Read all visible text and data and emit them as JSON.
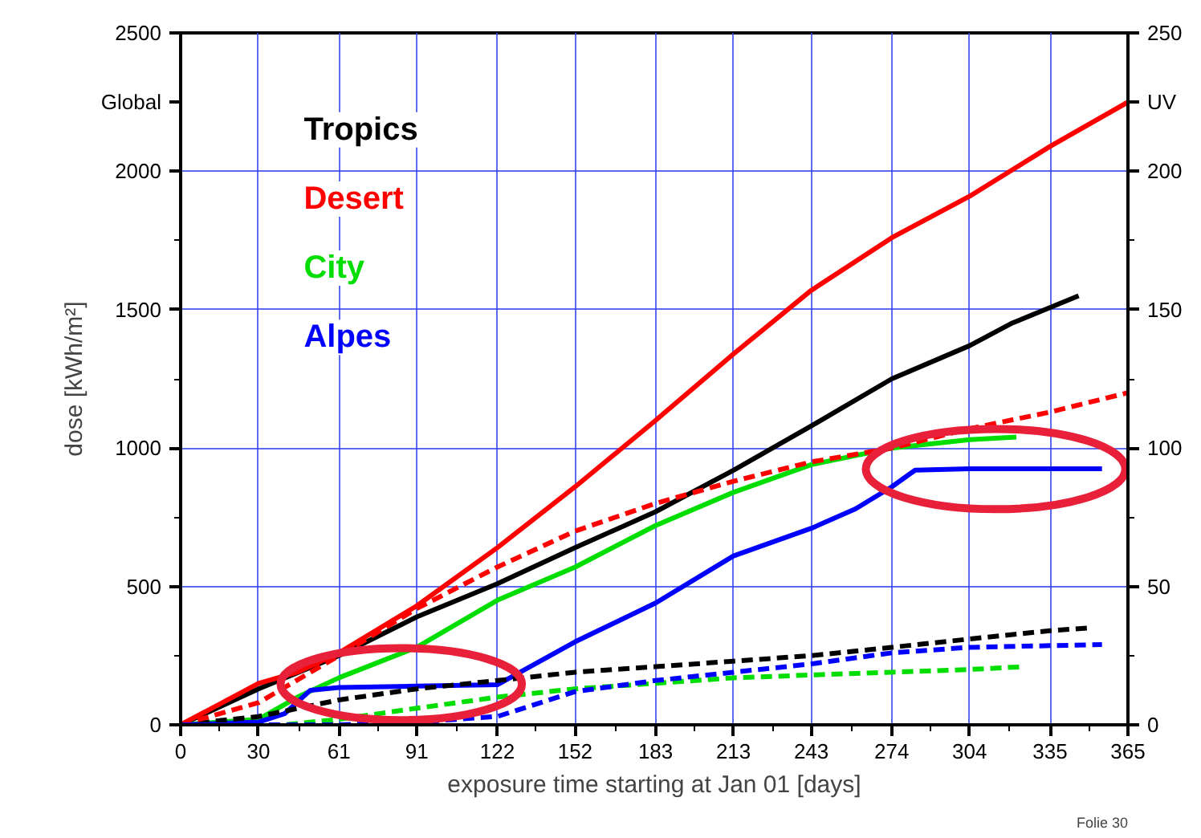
{
  "chart_data": {
    "type": "line",
    "xlabel": "exposure time starting at Jan 01 [days]",
    "ylabel": "dose [kWh/m²]",
    "annotations": [
      "Global",
      "UV",
      "Folie 30"
    ],
    "xlim": [
      0,
      365
    ],
    "xticks": [
      0,
      30,
      61,
      91,
      122,
      152,
      183,
      213,
      243,
      274,
      304,
      335,
      365
    ],
    "ylim": [
      0,
      2500
    ],
    "yticks": [
      0,
      500,
      1000,
      1500,
      2000,
      2500
    ],
    "y2lim": [
      0,
      250
    ],
    "y2ticks": [
      0,
      50,
      100,
      150,
      200,
      250
    ],
    "grid": true,
    "legend": "top left",
    "marker": "none",
    "series": [
      {
        "name": "Tropics",
        "color": "#000000",
        "line_style": "solid",
        "x": [
          0,
          30,
          61,
          91,
          122,
          152,
          183,
          213,
          243,
          274,
          304,
          320,
          346
        ],
        "values": [
          0,
          130,
          250,
          390,
          510,
          640,
          770,
          920,
          1080,
          1250,
          1370,
          1450,
          1550
        ]
      },
      {
        "name": "Desert",
        "color": "#ff0000",
        "line_style": "solid",
        "x": [
          0,
          30,
          45,
          61,
          91,
          122,
          152,
          183,
          213,
          243,
          274,
          304,
          335,
          365
        ],
        "values": [
          0,
          150,
          190,
          260,
          430,
          640,
          860,
          1100,
          1340,
          1570,
          1760,
          1910,
          2090,
          2250
        ]
      },
      {
        "name": "City",
        "color": "#00dd00",
        "line_style": "solid",
        "x": [
          0,
          30,
          45,
          61,
          91,
          122,
          152,
          183,
          213,
          243,
          274,
          304,
          322
        ],
        "values": [
          0,
          20,
          100,
          170,
          280,
          450,
          570,
          720,
          840,
          940,
          1000,
          1030,
          1040
        ]
      },
      {
        "name": "Alpes",
        "color": "#0000ff",
        "line_style": "solid",
        "x": [
          0,
          30,
          40,
          50,
          61,
          91,
          122,
          152,
          183,
          213,
          243,
          260,
          274,
          283,
          304,
          355
        ],
        "values": [
          0,
          10,
          40,
          125,
          135,
          140,
          145,
          300,
          440,
          610,
          710,
          780,
          860,
          920,
          925,
          925
        ]
      },
      {
        "color": "#000000",
        "line_style": "dashed",
        "axis": "y2",
        "x": [
          0,
          30,
          61,
          91,
          122,
          152,
          183,
          213,
          243,
          274,
          304,
          335,
          350
        ],
        "values": [
          0,
          3,
          9,
          13,
          16,
          19,
          21,
          23,
          25,
          28,
          31,
          34,
          35
        ]
      },
      {
        "color": "#ff0000",
        "line_style": "dashed",
        "axis": "y2",
        "x": [
          0,
          30,
          61,
          91,
          122,
          152,
          183,
          213,
          243,
          274,
          304,
          335,
          365
        ],
        "values": [
          0,
          8,
          25,
          42,
          57,
          70,
          80,
          88,
          95,
          100,
          107,
          113,
          120
        ]
      },
      {
        "color": "#00dd00",
        "line_style": "dashed",
        "axis": "y2",
        "x": [
          0,
          40,
          61,
          91,
          122,
          152,
          183,
          213,
          243,
          274,
          304,
          325
        ],
        "values": [
          0,
          0,
          2,
          6,
          10,
          13,
          15,
          17,
          18,
          19,
          20,
          21
        ]
      },
      {
        "color": "#0000ff",
        "line_style": "dashed",
        "axis": "y2",
        "x": [
          0,
          30,
          61,
          91,
          122,
          152,
          183,
          213,
          243,
          274,
          304,
          355
        ],
        "values": [
          0,
          0,
          0,
          1,
          3,
          12,
          16,
          19,
          22,
          26,
          28,
          29
        ]
      }
    ]
  }
}
